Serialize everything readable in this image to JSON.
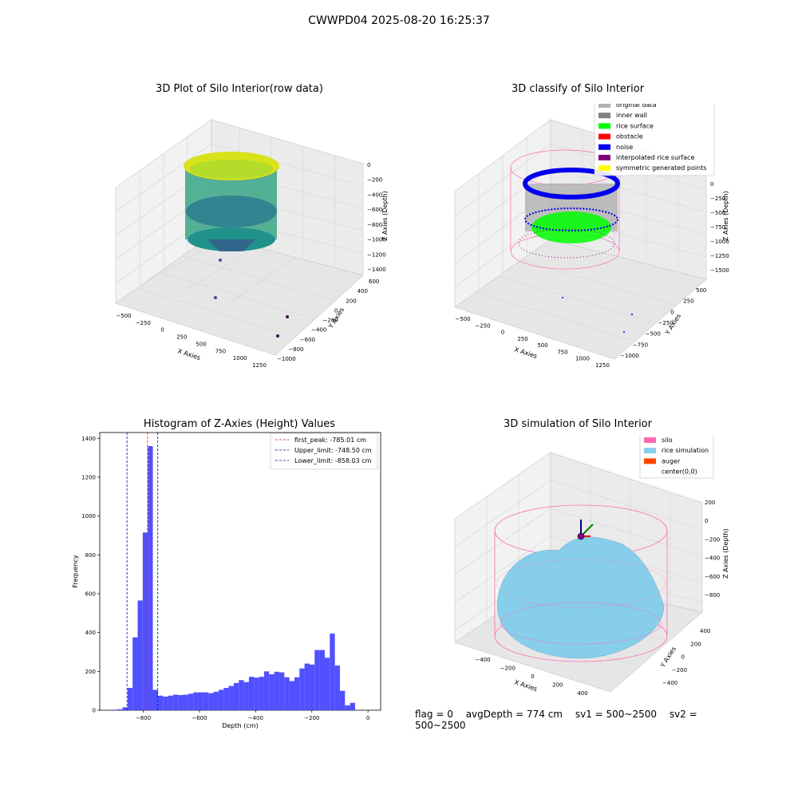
{
  "figure": {
    "suptitle": "CWWPD04 2025-08-20 16:25:37",
    "status": {
      "flag": "flag = 0",
      "avg_depth": "avgDepth = 774 cm",
      "sv1": "sv1 = 500~2500",
      "sv2": "sv2 = 500~2500"
    }
  },
  "colors": {
    "histogram_bar": "#5050ff",
    "first_peak_line": "#ff0000",
    "limit_line": "#0000cc",
    "pane": "#f2f2f2",
    "grid": "#d0d0d0",
    "silo": "#ff69b4",
    "rice_simulation": "#87ceeb",
    "auger": "#ff4500",
    "original_data": "#b0b0b0",
    "inner_wall": "#808080",
    "rice_surface": "#00ff00",
    "obstacle": "#ff0000",
    "noise": "#0000ee",
    "interpolated_rice_surface": "#800080",
    "symmetric_points": "#ffff00"
  },
  "chart_data": [
    {
      "type": "scatter3d",
      "title": "3D Plot of Silo Interior(row data)",
      "xlabel": "X Axies",
      "ylabel": "Y Axies",
      "zlabel": "Z Axies (Depth)",
      "x_ticks": [
        "−500",
        "−250",
        "0",
        "250",
        "500",
        "750",
        "1000",
        "1250"
      ],
      "y_ticks": [
        "−1000",
        "−800",
        "−600",
        "−400",
        "−200",
        "0",
        "200",
        "400",
        "600"
      ],
      "z_ticks": [
        "0",
        "−200",
        "−400",
        "−600",
        "−800",
        "−1000",
        "−1200",
        "−1400"
      ],
      "xlim": [
        -500,
        1300
      ],
      "ylim": [
        -1050,
        650
      ],
      "zlim": [
        -1450,
        50
      ],
      "colormap": "viridis"
    },
    {
      "type": "scatter3d",
      "title": "3D classify of Silo Interior",
      "xlabel": "X Axies",
      "ylabel": "Y Axies",
      "zlabel": "Z Axies (Depth)",
      "x_ticks": [
        "−500",
        "−250",
        "0",
        "250",
        "500",
        "750",
        "1000",
        "1250"
      ],
      "y_ticks": [
        "−1000",
        "−750",
        "−500",
        "−250",
        "0",
        "250",
        "500"
      ],
      "z_ticks": [
        "0",
        "−250",
        "−500",
        "−750",
        "−1000",
        "−1250",
        "−1500"
      ],
      "legend": [
        {
          "label": "original data",
          "color": "#b0b0b0"
        },
        {
          "label": "inner wall",
          "color": "#808080"
        },
        {
          "label": "rice surface",
          "color": "#00ff00"
        },
        {
          "label": "obstacle",
          "color": "#ff0000"
        },
        {
          "label": "noise",
          "color": "#0000ee"
        },
        {
          "label": "interpolated rice surface",
          "color": "#800080"
        },
        {
          "label": "symmetric generated points",
          "color": "#ffff00"
        }
      ],
      "legend_position": "top-right"
    },
    {
      "type": "bar",
      "title": "Histogram of Z-Axies (Height) Values",
      "xlabel": "Depth (cm)",
      "ylabel": "Frequency",
      "xlim": [
        -955,
        45
      ],
      "ylim": [
        0,
        1430
      ],
      "x_ticks": [
        -800,
        -600,
        -400,
        -200,
        0
      ],
      "x_tick_labels": [
        "−800",
        "−600",
        "−400",
        "−200",
        "0"
      ],
      "y_ticks": [
        0,
        200,
        400,
        600,
        800,
        1000,
        1200,
        1400
      ],
      "y_tick_labels": [
        "0",
        "200",
        "400",
        "600",
        "800",
        "1000",
        "1200",
        "1400"
      ],
      "bin_width": 18,
      "bin_start": -910,
      "values": [
        3,
        5,
        15,
        115,
        375,
        565,
        915,
        1360,
        105,
        75,
        70,
        75,
        80,
        78,
        80,
        85,
        92,
        92,
        92,
        88,
        95,
        105,
        115,
        125,
        140,
        155,
        145,
        172,
        168,
        172,
        200,
        185,
        198,
        195,
        170,
        150,
        170,
        215,
        240,
        235,
        310,
        310,
        270,
        395,
        230,
        100,
        25,
        38
      ],
      "vlines": [
        {
          "label": "first_peak: -785.01 cm",
          "x": -785.01,
          "color": "#ff0000"
        },
        {
          "label": "Upper_limit: -748.50 cm",
          "x": -748.5,
          "color": "#0000cc"
        },
        {
          "label": "Lower_limit: -858.03 cm",
          "x": -858.03,
          "color": "#0000cc"
        }
      ],
      "legend_position": "top-right"
    },
    {
      "type": "surface3d",
      "title": "3D simulation of Silo Interior",
      "xlabel": "X Axies",
      "ylabel": "Y Axies",
      "zlabel": "Z Axies (Depth)",
      "x_ticks": [
        "−400",
        "−200",
        "0",
        "200",
        "400"
      ],
      "y_ticks": [
        "−400",
        "−200",
        "0",
        "200",
        "400"
      ],
      "z_ticks": [
        "200",
        "0",
        "−200",
        "−400",
        "−600",
        "−800"
      ],
      "legend": [
        {
          "label": "silo",
          "color": "#ff69b4"
        },
        {
          "label": "rice simulation",
          "color": "#87ceeb"
        },
        {
          "label": "auger",
          "color": "#ff4500"
        },
        {
          "label": "center(0,0)",
          "color": ""
        }
      ],
      "legend_position": "top-right"
    }
  ]
}
